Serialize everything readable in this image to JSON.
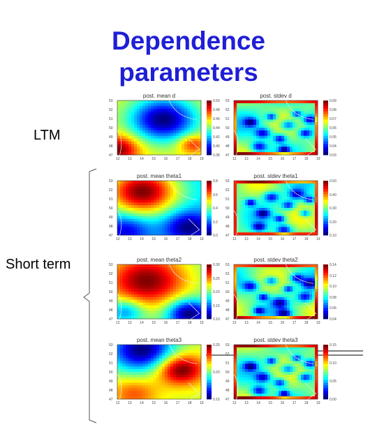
{
  "title_line1": "Dependence",
  "title_line2": "parameters",
  "labels": {
    "ltm": "LTM",
    "short_term": "Short term"
  },
  "panels": [
    {
      "title": "post. mean d",
      "legend": [
        "0.50",
        "0.48",
        "0.46",
        "0.44",
        "0.42",
        "0.40",
        "0.38"
      ],
      "kind": "mean",
      "scheme": "d"
    },
    {
      "title": "post. stdev d",
      "legend": [
        "0.09",
        "0.08",
        "0.07",
        "0.06",
        "0.05",
        "0.04",
        "0.03"
      ],
      "kind": "sd"
    },
    {
      "title": "post. mean theta1",
      "legend": [
        "0.8",
        "0.6",
        "0.4",
        "0.2",
        "0.0"
      ],
      "kind": "mean",
      "scheme": "t1"
    },
    {
      "title": "post. stdev theta1",
      "legend": [
        "0.50",
        "0.40",
        "0.30",
        "0.20",
        "0.10"
      ],
      "kind": "sd"
    },
    {
      "title": "post. mean theta2",
      "legend": [
        "0.30",
        "0.25",
        "0.20",
        "0.15",
        "0.10"
      ],
      "kind": "mean",
      "scheme": "t2"
    },
    {
      "title": "post. stdev theta2",
      "legend": [
        "0.14",
        "0.12",
        "0.10",
        "0.08",
        "0.06",
        "0.04"
      ],
      "kind": "sd"
    },
    {
      "title": "post. mean theta3",
      "legend": [
        "0.25",
        "0.20",
        "0.15"
      ],
      "kind": "mean",
      "scheme": "t3"
    },
    {
      "title": "post. stdev theta3",
      "legend": [
        "0.15",
        "0.10",
        "0.05",
        "0.00"
      ],
      "kind": "sd"
    }
  ],
  "x_ticks": [
    "12",
    "13",
    "14",
    "15",
    "16",
    "17",
    "18",
    "19"
  ],
  "y_ticks": [
    "53",
    "52",
    "51",
    "50",
    "49",
    "48",
    "47"
  ],
  "colors": {
    "title": "#1f1fd6"
  }
}
